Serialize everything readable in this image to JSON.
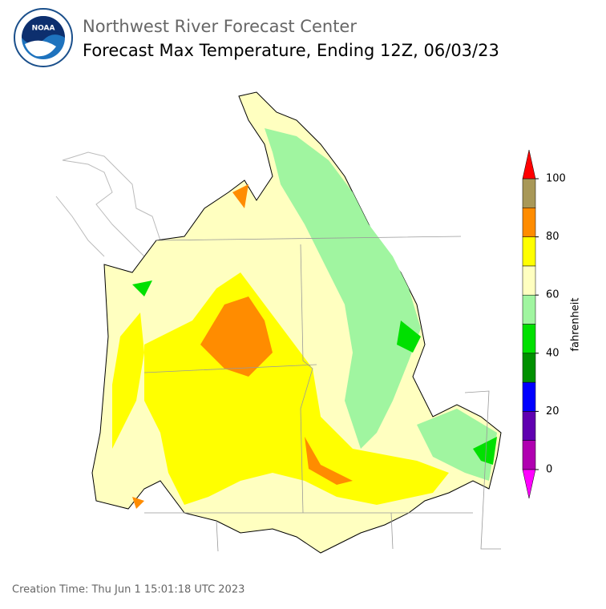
{
  "header": {
    "title": "Northwest River Forecast Center",
    "subtitle": "Forecast Max Temperature, Ending 12Z, 06/03/23"
  },
  "colorbar": {
    "label": "fahrenheit",
    "ticks": [
      0,
      20,
      40,
      60,
      80,
      100
    ],
    "colors": [
      "#b000b0",
      "#6000b0",
      "#0000ff",
      "#009000",
      "#00e000",
      "#a0f5a0",
      "#ffffc0",
      "#ffff00",
      "#ff8c00",
      "#a89858"
    ],
    "under_color": "#ff00ff",
    "over_color": "#ff0000"
  },
  "footer": {
    "creation_time": "Creation Time: Thu Jun 1 15:01:18 UTC 2023"
  }
}
